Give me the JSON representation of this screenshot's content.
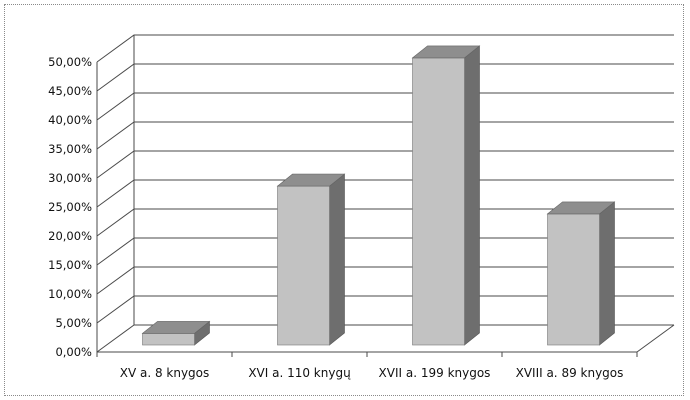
{
  "chart_data": {
    "type": "bar",
    "categories": [
      "XV a. 8 knygos",
      "XVI a. 110 knygų",
      "XVII a. 199 knygos",
      "XVIII a. 89 knygos"
    ],
    "values": [
      2.0,
      27.4,
      49.5,
      22.6
    ],
    "unit": "%",
    "ylim": [
      0,
      50
    ],
    "y_ticks": [
      "0,00%",
      "5,00%",
      "10,00%",
      "15,00%",
      "20,00%",
      "25,00%",
      "30,00%",
      "35,00%",
      "40,00%",
      "45,00%",
      "50,00%"
    ],
    "grid": true,
    "style": "3d-column",
    "colors": {
      "front": "#c2c2c2",
      "top": "#8e8e8e",
      "side": "#6e6e6e",
      "grid": "#4a4a4a"
    }
  }
}
